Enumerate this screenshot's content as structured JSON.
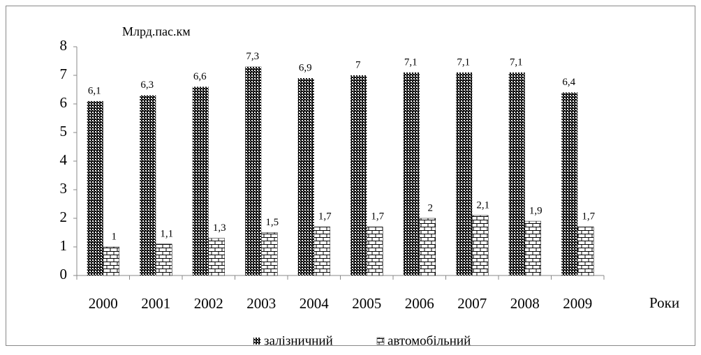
{
  "chart_data": {
    "type": "bar",
    "y_label": "Млрд.пас.км",
    "x_label": "Роки",
    "categories": [
      "2000",
      "2001",
      "2002",
      "2003",
      "2004",
      "2005",
      "2006",
      "2007",
      "2008",
      "2009"
    ],
    "series": [
      {
        "name": "залізничний",
        "color": "#000000",
        "values": [
          6.1,
          6.3,
          6.6,
          7.3,
          6.9,
          7,
          7.1,
          7.1,
          7.1,
          6.4
        ],
        "value_labels": [
          "6,1",
          "6,3",
          "6,6",
          "7,3",
          "6,9",
          "7",
          "7,1",
          "7,1",
          "7,1",
          "6,4"
        ]
      },
      {
        "name": "автомобільний",
        "color": "#ffffff",
        "values": [
          1,
          1.1,
          1.3,
          1.5,
          1.7,
          1.7,
          2,
          2.1,
          1.9,
          1.7
        ],
        "value_labels": [
          "1",
          "1,1",
          "1,3",
          "1,5",
          "1,7",
          "1,7",
          "2",
          "2,1",
          "1,9",
          "1,7"
        ]
      }
    ],
    "ylim": [
      0,
      8
    ],
    "yticks": [
      0,
      1,
      2,
      3,
      4,
      5,
      6,
      7,
      8
    ],
    "grid": false,
    "legend": "bottom"
  }
}
